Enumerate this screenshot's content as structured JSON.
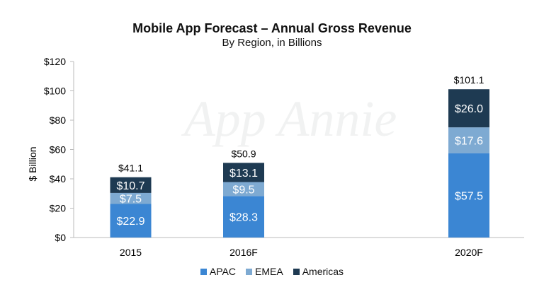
{
  "chart_data": {
    "type": "bar",
    "stacked": true,
    "title": "Mobile App Forecast – Annual Gross Revenue",
    "subtitle": "By Region, in Billions",
    "xlabel": "",
    "ylabel": "$ Billion",
    "ylim": [
      0,
      120
    ],
    "yticks": [
      0,
      20,
      40,
      60,
      80,
      100,
      120
    ],
    "ytick_labels": [
      "$0",
      "$20",
      "$40",
      "$60",
      "$80",
      "$100",
      "$120"
    ],
    "categories": [
      "2015",
      "2016F",
      "2020F"
    ],
    "series": [
      {
        "name": "APAC",
        "color": "#3b86d3",
        "values": [
          22.9,
          28.3,
          57.5
        ],
        "labels": [
          "$22.9",
          "$28.3",
          "$57.5"
        ]
      },
      {
        "name": "EMEA",
        "color": "#7eaad2",
        "values": [
          7.5,
          9.5,
          17.6
        ],
        "labels": [
          "$7.5",
          "$9.5",
          "$17.6"
        ]
      },
      {
        "name": "Americas",
        "color": "#1e3a52",
        "values": [
          10.7,
          13.1,
          26.0
        ],
        "labels": [
          "$10.7",
          "$13.1",
          "$26.0"
        ]
      }
    ],
    "totals": [
      41.1,
      50.9,
      101.1
    ],
    "total_labels": [
      "$41.1",
      "$50.9",
      "$101.1"
    ],
    "legend_placement": "bottom",
    "grid": false,
    "watermark": "App Annie"
  }
}
